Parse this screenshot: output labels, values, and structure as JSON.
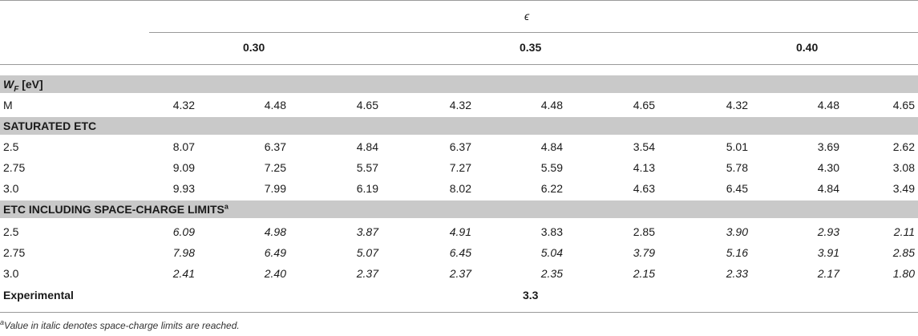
{
  "header": {
    "epsilon_symbol": "ϵ",
    "groups": [
      "0.30",
      "0.35",
      "0.40"
    ]
  },
  "wf": {
    "label_main": "W",
    "label_sub": "F",
    "label_unit": " [eV]",
    "row_label": "M",
    "values": [
      "4.32",
      "4.48",
      "4.65",
      "4.32",
      "4.48",
      "4.65",
      "4.32",
      "4.48",
      "4.65"
    ]
  },
  "saturated": {
    "title": "SATURATED ETC",
    "rows": [
      {
        "label": "2.5",
        "values": [
          "8.07",
          "6.37",
          "4.84",
          "6.37",
          "4.84",
          "3.54",
          "5.01",
          "3.69",
          "2.62"
        ]
      },
      {
        "label": "2.75",
        "values": [
          "9.09",
          "7.25",
          "5.57",
          "7.27",
          "5.59",
          "4.13",
          "5.78",
          "4.30",
          "3.08"
        ]
      },
      {
        "label": "3.0",
        "values": [
          "9.93",
          "7.99",
          "6.19",
          "8.02",
          "6.22",
          "4.63",
          "6.45",
          "4.84",
          "3.49"
        ]
      }
    ]
  },
  "spacecharge": {
    "title": "ETC INCLUDING SPACE-CHARGE LIMITS",
    "title_sup": "a",
    "rows": [
      {
        "label": "2.5",
        "values": [
          "6.09",
          "4.98",
          "3.87",
          "4.91",
          "3.83",
          "2.85",
          "3.90",
          "2.93",
          "2.11"
        ],
        "italic": [
          true,
          true,
          true,
          true,
          false,
          false,
          true,
          true,
          true
        ]
      },
      {
        "label": "2.75",
        "values": [
          "7.98",
          "6.49",
          "5.07",
          "6.45",
          "5.04",
          "3.79",
          "5.16",
          "3.91",
          "2.85"
        ],
        "italic": [
          true,
          true,
          true,
          true,
          true,
          true,
          true,
          true,
          true
        ]
      },
      {
        "label": "3.0",
        "values": [
          "2.41",
          "2.40",
          "2.37",
          "2.37",
          "2.35",
          "2.15",
          "2.33",
          "2.17",
          "1.80"
        ],
        "italic": [
          true,
          true,
          true,
          true,
          true,
          true,
          true,
          true,
          true
        ]
      }
    ]
  },
  "experimental": {
    "label": "Experimental",
    "value": "3.3"
  },
  "footnote": {
    "sup": "a",
    "text": "Value in italic denotes space-charge limits are reached."
  }
}
